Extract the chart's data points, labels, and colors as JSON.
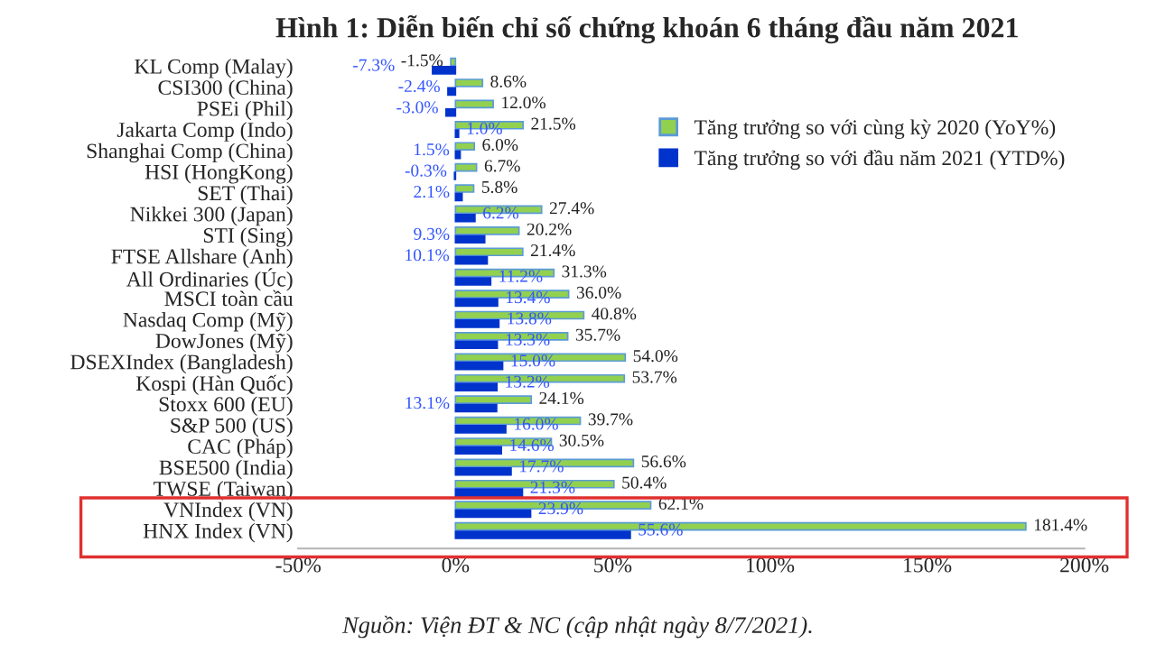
{
  "chart_data": {
    "type": "bar",
    "orientation": "horizontal",
    "title": "Hình 1: Diễn biến chỉ số chứng khoán 6 tháng đầu năm 2021",
    "categories": [
      "KL Comp (Malay)",
      "CSI300 (China)",
      "PSEi (Phil)",
      "Jakarta Comp (Indo)",
      "Shanghai Comp (China)",
      "HSI (HongKong)",
      "SET (Thai)",
      "Nikkei 300 (Japan)",
      "STI (Sing)",
      "FTSE Allshare (Anh)",
      "All Ordinaries (Úc)",
      "MSCI toàn cầu",
      "Nasdaq Comp (Mỹ)",
      "DowJones (Mỹ)",
      "DSEXIndex (Bangladesh)",
      "Kospi (Hàn Quốc)",
      "Stoxx 600 (EU)",
      "S&P 500 (US)",
      "CAC (Pháp)",
      "BSE500 (India)",
      "TWSE (Taiwan)",
      "VNIndex (VN)",
      "HNX Index (VN)"
    ],
    "series": [
      {
        "name": "Tăng trưởng so với cùng kỳ 2020 (YoY%)",
        "color": "#92d050",
        "values": [
          -1.5,
          8.6,
          12.0,
          21.5,
          6.0,
          6.7,
          5.8,
          27.4,
          20.2,
          21.4,
          31.3,
          36.0,
          40.8,
          35.7,
          54.0,
          53.7,
          24.1,
          39.7,
          30.5,
          56.6,
          50.4,
          62.1,
          181.4
        ],
        "value_labels": [
          "-1.5%",
          "8.6%",
          "12.0%",
          "21.5%",
          "6.0%",
          "6.7%",
          "5.8%",
          "27.4%",
          "20.2%",
          "21.4%",
          "31.3%",
          "36.0%",
          "40.8%",
          "35.7%",
          "54.0%",
          "53.7%",
          "24.1%",
          "39.7%",
          "30.5%",
          "56.6%",
          "50.4%",
          "62.1%",
          "181.4%"
        ]
      },
      {
        "name": "Tăng trưởng so với đầu năm 2021 (YTD%)",
        "color": "#0033cc",
        "values": [
          -7.3,
          -2.4,
          -3.0,
          1.0,
          1.5,
          -0.3,
          2.1,
          6.2,
          9.3,
          10.1,
          11.2,
          13.4,
          13.8,
          13.3,
          15.0,
          13.2,
          13.1,
          16.0,
          14.6,
          17.7,
          21.3,
          23.9,
          55.6
        ],
        "value_labels": [
          "-7.3%",
          "-2.4%",
          "-3.0%",
          "1.0%",
          "1.5%",
          "-0.3%",
          "2.1%",
          "6.2%",
          "9.3%",
          "10.1%",
          "11.2%",
          "13.4%",
          "13.8%",
          "13.3%",
          "15.0%",
          "13.2%",
          "13.1%",
          "16.0%",
          "14.6%",
          "17.7%",
          "21.3%",
          "23.9%",
          "55.6%"
        ]
      }
    ],
    "xlim": [
      -50,
      200
    ],
    "xticks": [
      {
        "value": -50,
        "label": "-50%"
      },
      {
        "value": 0,
        "label": "0%"
      },
      {
        "value": 50,
        "label": "50%"
      },
      {
        "value": 100,
        "label": "100%"
      },
      {
        "value": 150,
        "label": "150%"
      },
      {
        "value": 200,
        "label": "200%"
      }
    ],
    "grid": false,
    "legend": "right",
    "annotations": [
      "Nguồn: Viện ĐT & NC (cập nhật ngày 8/7/2021)."
    ]
  }
}
